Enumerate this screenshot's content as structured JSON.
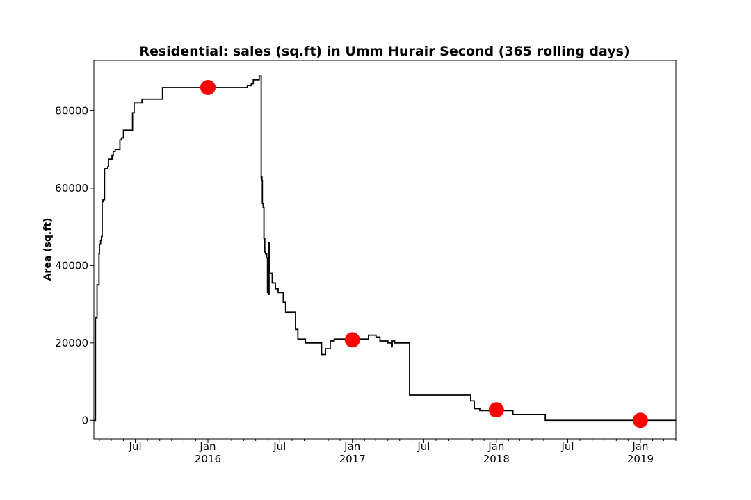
{
  "chart_data": {
    "type": "line",
    "title": "Residential: sales (sq.ft) in Umm Hurair Second (365 rolling days)",
    "ylabel": "Area (sq.ft)",
    "xlabel": "",
    "xlim": [
      "2015-03-18",
      "2019-04-01"
    ],
    "ylim": [
      -4800,
      93000
    ],
    "grid": false,
    "legend": "none",
    "y_ticks": [
      {
        "value": 0,
        "label": "0"
      },
      {
        "value": 20000,
        "label": "20000"
      },
      {
        "value": 40000,
        "label": "40000"
      },
      {
        "value": 60000,
        "label": "60000"
      },
      {
        "value": 80000,
        "label": "80000"
      }
    ],
    "x_ticks": [
      {
        "date": "2015-07-01",
        "label": "Jul",
        "sublabel": ""
      },
      {
        "date": "2016-01-01",
        "label": "Jan",
        "sublabel": "2016"
      },
      {
        "date": "2016-07-01",
        "label": "Jul",
        "sublabel": ""
      },
      {
        "date": "2017-01-01",
        "label": "Jan",
        "sublabel": "2017"
      },
      {
        "date": "2017-07-01",
        "label": "Jul",
        "sublabel": ""
      },
      {
        "date": "2018-01-01",
        "label": "Jan",
        "sublabel": "2018"
      },
      {
        "date": "2018-07-01",
        "label": "Jul",
        "sublabel": ""
      },
      {
        "date": "2019-01-01",
        "label": "Jan",
        "sublabel": "2019"
      }
    ],
    "x_minor_ticks": [
      "2015-04-01",
      "2015-05-01",
      "2015-06-01",
      "2015-08-01",
      "2015-09-01",
      "2015-10-01",
      "2015-11-01",
      "2015-12-01",
      "2016-02-01",
      "2016-03-01",
      "2016-04-01",
      "2016-05-01",
      "2016-06-01",
      "2016-08-01",
      "2016-09-01",
      "2016-10-01",
      "2016-11-01",
      "2016-12-01",
      "2017-02-01",
      "2017-03-01",
      "2017-04-01",
      "2017-05-01",
      "2017-06-01",
      "2017-08-01",
      "2017-09-01",
      "2017-10-01",
      "2017-11-01",
      "2017-12-01",
      "2018-02-01",
      "2018-03-01",
      "2018-04-01",
      "2018-05-01",
      "2018-06-01",
      "2018-08-01",
      "2018-09-01",
      "2018-10-01",
      "2018-11-01",
      "2018-12-01",
      "2019-02-01",
      "2019-03-01",
      "2019-04-01"
    ],
    "series": [
      {
        "color": "#000000",
        "step": true,
        "points": [
          [
            "2015-03-18",
            0
          ],
          [
            "2015-03-21",
            0
          ],
          [
            "2015-03-22",
            26500
          ],
          [
            "2015-03-25",
            26500
          ],
          [
            "2015-03-26",
            35000
          ],
          [
            "2015-03-30",
            35000
          ],
          [
            "2015-03-31",
            43000
          ],
          [
            "2015-04-01",
            45500
          ],
          [
            "2015-04-04",
            46500
          ],
          [
            "2015-04-06",
            47500
          ],
          [
            "2015-04-08",
            56500
          ],
          [
            "2015-04-10",
            57000
          ],
          [
            "2015-04-14",
            65000
          ],
          [
            "2015-04-22",
            65500
          ],
          [
            "2015-04-24",
            67500
          ],
          [
            "2015-05-03",
            68500
          ],
          [
            "2015-05-06",
            69500
          ],
          [
            "2015-05-11",
            70000
          ],
          [
            "2015-05-23",
            72500
          ],
          [
            "2015-05-27",
            73000
          ],
          [
            "2015-06-01",
            75000
          ],
          [
            "2015-06-24",
            79500
          ],
          [
            "2015-06-28",
            82000
          ],
          [
            "2015-07-18",
            83000
          ],
          [
            "2015-09-08",
            86000
          ],
          [
            "2016-04-10",
            86500
          ],
          [
            "2016-04-20",
            87000
          ],
          [
            "2016-04-25",
            88000
          ],
          [
            "2016-05-10",
            89000
          ],
          [
            "2016-05-14",
            89000
          ],
          [
            "2016-05-15",
            62500
          ],
          [
            "2016-05-16",
            63000
          ],
          [
            "2016-05-17",
            62000
          ],
          [
            "2016-05-18",
            56000
          ],
          [
            "2016-05-20",
            55000
          ],
          [
            "2016-05-22",
            47000
          ],
          [
            "2016-05-24",
            43500
          ],
          [
            "2016-05-26",
            43000
          ],
          [
            "2016-05-29",
            42000
          ],
          [
            "2016-05-31",
            33000
          ],
          [
            "2016-06-02",
            32500
          ],
          [
            "2016-06-04",
            46000
          ],
          [
            "2016-06-05",
            38000
          ],
          [
            "2016-06-08",
            38000
          ],
          [
            "2016-06-12",
            35500
          ],
          [
            "2016-06-20",
            34000
          ],
          [
            "2016-06-27",
            33000
          ],
          [
            "2016-07-10",
            30500
          ],
          [
            "2016-07-16",
            28000
          ],
          [
            "2016-08-10",
            23500
          ],
          [
            "2016-08-16",
            21000
          ],
          [
            "2016-09-04",
            20000
          ],
          [
            "2016-10-15",
            17000
          ],
          [
            "2016-10-25",
            18500
          ],
          [
            "2016-11-06",
            20500
          ],
          [
            "2016-11-16",
            21000
          ],
          [
            "2017-02-11",
            22000
          ],
          [
            "2017-03-02",
            21500
          ],
          [
            "2017-03-12",
            20500
          ],
          [
            "2017-04-01",
            20000
          ],
          [
            "2017-04-10",
            19000
          ],
          [
            "2017-04-12",
            20500
          ],
          [
            "2017-04-18",
            20000
          ],
          [
            "2017-05-26",
            6500
          ],
          [
            "2017-10-28",
            5000
          ],
          [
            "2017-11-06",
            3000
          ],
          [
            "2017-11-20",
            2500
          ],
          [
            "2018-02-12",
            1500
          ],
          [
            "2018-05-05",
            0
          ],
          [
            "2019-04-01",
            0
          ]
        ]
      }
    ],
    "highlights": {
      "color": "#ff0000",
      "points": [
        [
          "2016-01-01",
          86000
        ],
        [
          "2017-01-01",
          20800
        ],
        [
          "2018-01-01",
          2700
        ],
        [
          "2019-01-01",
          0
        ]
      ]
    }
  }
}
